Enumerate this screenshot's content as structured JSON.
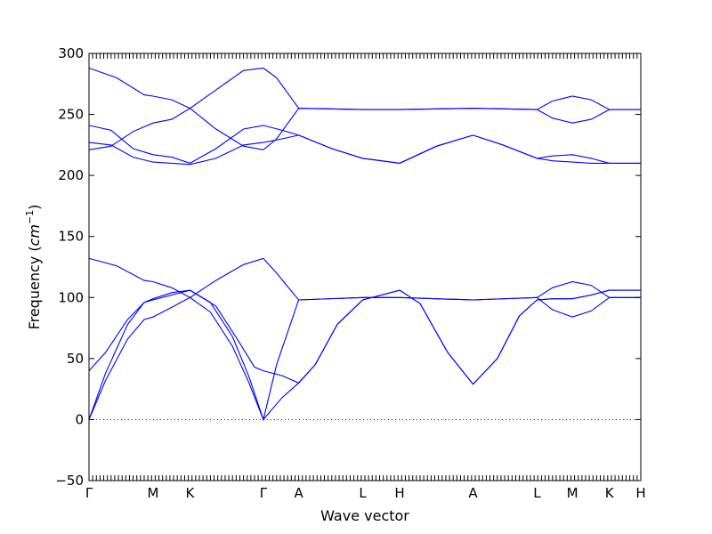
{
  "chart_data": {
    "type": "line",
    "xlabel": "Wave vector",
    "ylabel_text": "Frequency (",
    "ylabel_unit": "cm",
    "ylabel_exp": "−1",
    "ylabel_close": ")",
    "ylim": [
      -50,
      300
    ],
    "yticks": [
      -50,
      0,
      50,
      100,
      150,
      200,
      250,
      300
    ],
    "y_tick_labels": [
      "−50",
      "0",
      "50",
      "100",
      "150",
      "200",
      "250",
      "300"
    ],
    "xlim": [
      0,
      10
    ],
    "x_symmetry_points": [
      {
        "label": "Γ",
        "x": 0
      },
      {
        "label": "M",
        "x": 1.16
      },
      {
        "label": "K",
        "x": 1.83
      },
      {
        "label": "Γ",
        "x": 3.16
      },
      {
        "label": "A",
        "x": 3.8
      },
      {
        "label": "L",
        "x": 4.96
      },
      {
        "label": "H",
        "x": 5.63
      },
      {
        "label": "A",
        "x": 6.96
      },
      {
        "label": "L",
        "x": 8.12
      },
      {
        "label": "M",
        "x": 8.76
      },
      {
        "label": "K",
        "x": 9.43
      },
      {
        "label": "H",
        "x": 10
      }
    ],
    "zero_line": true,
    "series_color": "#0000ff",
    "series": [
      {
        "points": [
          [
            0,
            288
          ],
          [
            0.5,
            280
          ],
          [
            1.0,
            266
          ],
          [
            1.16,
            265
          ],
          [
            1.5,
            262
          ],
          [
            1.83,
            255
          ],
          [
            2.3,
            270
          ],
          [
            2.8,
            286
          ],
          [
            3.16,
            288
          ],
          [
            3.4,
            280
          ],
          [
            3.8,
            255
          ],
          [
            4.96,
            254
          ],
          [
            5.63,
            254
          ],
          [
            6.96,
            255
          ],
          [
            8.12,
            254
          ],
          [
            8.4,
            261
          ],
          [
            8.76,
            265
          ],
          [
            9.1,
            262
          ],
          [
            9.43,
            254
          ],
          [
            10,
            254
          ]
        ]
      },
      {
        "points": [
          [
            0,
            221
          ],
          [
            0.4,
            224
          ],
          [
            0.8,
            236
          ],
          [
            1.16,
            243
          ],
          [
            1.5,
            246
          ],
          [
            1.83,
            255
          ],
          [
            2.3,
            238
          ],
          [
            2.8,
            224
          ],
          [
            3.16,
            221
          ],
          [
            3.4,
            230
          ],
          [
            3.8,
            255
          ],
          [
            4.96,
            254
          ],
          [
            5.63,
            254
          ],
          [
            6.96,
            255
          ],
          [
            8.12,
            254
          ],
          [
            8.4,
            247
          ],
          [
            8.76,
            243
          ],
          [
            9.1,
            246
          ],
          [
            9.43,
            254
          ],
          [
            10,
            254
          ]
        ]
      },
      {
        "points": [
          [
            0,
            241
          ],
          [
            0.4,
            237
          ],
          [
            0.8,
            222
          ],
          [
            1.16,
            217
          ],
          [
            1.5,
            215
          ],
          [
            1.83,
            210
          ],
          [
            2.3,
            222
          ],
          [
            2.8,
            238
          ],
          [
            3.16,
            241
          ],
          [
            3.5,
            237
          ],
          [
            3.8,
            233
          ],
          [
            4.4,
            222
          ],
          [
            4.96,
            214
          ],
          [
            5.3,
            212
          ],
          [
            5.63,
            210
          ],
          [
            6.3,
            224
          ],
          [
            6.96,
            233
          ],
          [
            7.5,
            225
          ],
          [
            8.12,
            214
          ],
          [
            8.4,
            216
          ],
          [
            8.76,
            217
          ],
          [
            9.1,
            214
          ],
          [
            9.43,
            210
          ],
          [
            10,
            210
          ]
        ]
      },
      {
        "points": [
          [
            0,
            227
          ],
          [
            0.4,
            225
          ],
          [
            0.8,
            215
          ],
          [
            1.16,
            211
          ],
          [
            1.5,
            210
          ],
          [
            1.83,
            209
          ],
          [
            2.3,
            214
          ],
          [
            2.8,
            225
          ],
          [
            3.16,
            227
          ],
          [
            3.5,
            230
          ],
          [
            3.8,
            233
          ],
          [
            4.4,
            222
          ],
          [
            4.96,
            214
          ],
          [
            5.3,
            212
          ],
          [
            5.63,
            210
          ],
          [
            6.3,
            224
          ],
          [
            6.96,
            233
          ],
          [
            7.5,
            225
          ],
          [
            8.12,
            214
          ],
          [
            8.4,
            212
          ],
          [
            8.76,
            211
          ],
          [
            9.1,
            210
          ],
          [
            9.43,
            210
          ],
          [
            10,
            210
          ]
        ]
      },
      {
        "points": [
          [
            0,
            132
          ],
          [
            0.5,
            126
          ],
          [
            1.0,
            114
          ],
          [
            1.16,
            113
          ],
          [
            1.5,
            108
          ],
          [
            1.83,
            100
          ],
          [
            2.3,
            114
          ],
          [
            2.8,
            127
          ],
          [
            3.16,
            132
          ],
          [
            3.4,
            120
          ],
          [
            3.8,
            98
          ],
          [
            4.96,
            100
          ],
          [
            5.63,
            100
          ],
          [
            6.96,
            98
          ],
          [
            8.12,
            100
          ],
          [
            8.4,
            108
          ],
          [
            8.76,
            113
          ],
          [
            9.1,
            110
          ],
          [
            9.43,
            100
          ],
          [
            10,
            100
          ]
        ]
      },
      {
        "points": [
          [
            0,
            40
          ],
          [
            0.3,
            55
          ],
          [
            0.7,
            82
          ],
          [
            1.0,
            96
          ],
          [
            1.16,
            99
          ],
          [
            1.5,
            104
          ],
          [
            1.83,
            106
          ],
          [
            2.3,
            93
          ],
          [
            2.7,
            65
          ],
          [
            3.0,
            43
          ],
          [
            3.16,
            40
          ],
          [
            3.5,
            36
          ],
          [
            3.8,
            30
          ],
          [
            4.1,
            45
          ],
          [
            4.5,
            78
          ],
          [
            4.96,
            98
          ],
          [
            5.3,
            102
          ],
          [
            5.63,
            106
          ],
          [
            6.0,
            95
          ],
          [
            6.5,
            55
          ],
          [
            6.96,
            29
          ],
          [
            7.4,
            50
          ],
          [
            7.8,
            85
          ],
          [
            8.12,
            98
          ],
          [
            8.4,
            99
          ],
          [
            8.76,
            99
          ],
          [
            9.1,
            102
          ],
          [
            9.43,
            106
          ],
          [
            10,
            106
          ]
        ]
      },
      {
        "points": [
          [
            0,
            0
          ],
          [
            0.3,
            38
          ],
          [
            0.7,
            78
          ],
          [
            1.0,
            96
          ],
          [
            1.16,
            98
          ],
          [
            1.5,
            102
          ],
          [
            1.83,
            106
          ],
          [
            2.2,
            96
          ],
          [
            2.6,
            68
          ],
          [
            2.9,
            35
          ],
          [
            3.16,
            0
          ],
          [
            3.5,
            18
          ],
          [
            3.8,
            30
          ],
          [
            4.1,
            45
          ],
          [
            4.5,
            78
          ],
          [
            4.96,
            98
          ],
          [
            5.3,
            102
          ],
          [
            5.63,
            106
          ],
          [
            6.0,
            95
          ],
          [
            6.5,
            55
          ],
          [
            6.96,
            29
          ],
          [
            7.4,
            50
          ],
          [
            7.8,
            85
          ],
          [
            8.12,
            98
          ],
          [
            8.4,
            99
          ],
          [
            8.76,
            99
          ],
          [
            9.1,
            102
          ],
          [
            9.43,
            106
          ],
          [
            10,
            106
          ]
        ]
      },
      {
        "points": [
          [
            0,
            0
          ],
          [
            0.3,
            32
          ],
          [
            0.7,
            66
          ],
          [
            1.0,
            82
          ],
          [
            1.16,
            84
          ],
          [
            1.5,
            92
          ],
          [
            1.83,
            100
          ],
          [
            2.2,
            88
          ],
          [
            2.6,
            60
          ],
          [
            2.9,
            30
          ],
          [
            3.16,
            0
          ],
          [
            3.4,
            45
          ],
          [
            3.8,
            98
          ],
          [
            4.96,
            100
          ],
          [
            5.63,
            100
          ],
          [
            6.96,
            98
          ],
          [
            8.12,
            100
          ],
          [
            8.4,
            90
          ],
          [
            8.76,
            84
          ],
          [
            9.1,
            89
          ],
          [
            9.43,
            100
          ],
          [
            10,
            100
          ]
        ]
      }
    ]
  }
}
